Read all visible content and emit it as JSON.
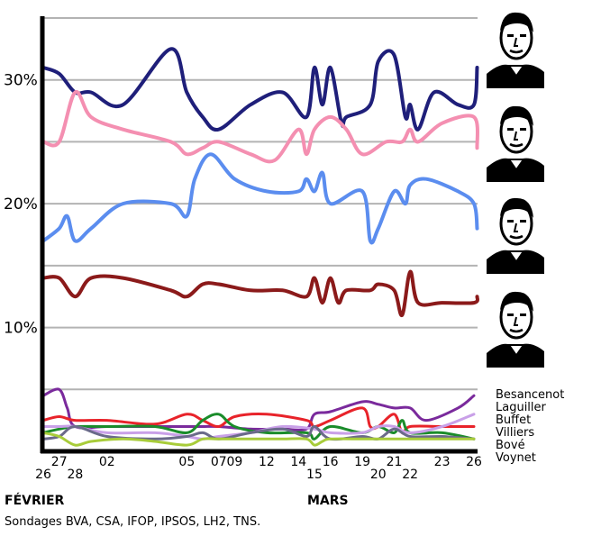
{
  "chart_data": {
    "type": "line",
    "x": [
      26,
      27,
      28,
      30,
      33,
      35,
      37,
      38,
      40,
      42,
      43,
      44,
      46,
      47,
      49,
      51,
      52,
      53,
      56
    ],
    "x_tick_labels": [
      "26",
      "27",
      "28",
      "02",
      "05",
      "07",
      "09",
      "12",
      "14",
      "15",
      "16",
      "19",
      "20",
      "21",
      "22",
      "23",
      "26"
    ],
    "x_tick_values": [
      26,
      27,
      28,
      30,
      35,
      37,
      38,
      40,
      42,
      43,
      44,
      46,
      47,
      48,
      49,
      51,
      53
    ],
    "month_labels": [
      {
        "label": "FÉVRIER",
        "x": 26
      },
      {
        "label": "MARS",
        "x": 44
      }
    ],
    "y_ticks": [
      10,
      20,
      30
    ],
    "y_tick_labels": [
      "10%",
      "20%",
      "30%"
    ],
    "ylim": [
      0,
      35
    ],
    "gridlines": [
      5,
      10,
      15,
      20,
      25,
      30,
      35
    ],
    "series": [
      {
        "key": "sarkozy",
        "color": "#1f1f7a",
        "points": [
          [
            26,
            31
          ],
          [
            27,
            30.5
          ],
          [
            28,
            29
          ],
          [
            29,
            29
          ],
          [
            31,
            28
          ],
          [
            34,
            32.5
          ],
          [
            35,
            29
          ],
          [
            36,
            27
          ],
          [
            37,
            26
          ],
          [
            39,
            28
          ],
          [
            41,
            29
          ],
          [
            42.5,
            27
          ],
          [
            43,
            31
          ],
          [
            43.5,
            28
          ],
          [
            44,
            31
          ],
          [
            44.7,
            26.5
          ],
          [
            45,
            27
          ],
          [
            46.5,
            28
          ],
          [
            47,
            31.5
          ],
          [
            48,
            32
          ],
          [
            48.7,
            27
          ],
          [
            49,
            28
          ],
          [
            49.5,
            26
          ],
          [
            50.5,
            29
          ],
          [
            52,
            28
          ],
          [
            53,
            28
          ],
          [
            53.2,
            31
          ]
        ]
      },
      {
        "key": "royal",
        "color": "#f48fb1",
        "points": [
          [
            26,
            25
          ],
          [
            27,
            25
          ],
          [
            28,
            29
          ],
          [
            29,
            27
          ],
          [
            31,
            26
          ],
          [
            34,
            25
          ],
          [
            35,
            24
          ],
          [
            36,
            24.5
          ],
          [
            37,
            25
          ],
          [
            39,
            24
          ],
          [
            40.5,
            23.5
          ],
          [
            42,
            26
          ],
          [
            42.5,
            24
          ],
          [
            43,
            26
          ],
          [
            44,
            27
          ],
          [
            45,
            26
          ],
          [
            46,
            24
          ],
          [
            47.5,
            25
          ],
          [
            48.5,
            25
          ],
          [
            49,
            26
          ],
          [
            49.5,
            25
          ],
          [
            51,
            26.5
          ],
          [
            53,
            27
          ],
          [
            53.2,
            24.5
          ]
        ]
      },
      {
        "key": "bayrou",
        "color": "#5b8def",
        "points": [
          [
            26,
            17
          ],
          [
            27,
            18
          ],
          [
            27.5,
            19
          ],
          [
            28,
            17
          ],
          [
            29,
            18
          ],
          [
            31,
            20
          ],
          [
            34,
            20
          ],
          [
            35,
            19
          ],
          [
            35.5,
            22
          ],
          [
            36.5,
            24
          ],
          [
            38,
            22
          ],
          [
            40,
            21
          ],
          [
            42,
            21
          ],
          [
            42.5,
            22
          ],
          [
            43,
            21
          ],
          [
            43.5,
            22.5
          ],
          [
            44,
            20
          ],
          [
            46,
            21
          ],
          [
            46.5,
            17
          ],
          [
            47,
            18
          ],
          [
            48,
            21
          ],
          [
            48.7,
            20
          ],
          [
            49,
            21.5
          ],
          [
            50,
            22
          ],
          [
            52,
            21
          ],
          [
            53,
            20
          ],
          [
            53.2,
            18
          ]
        ]
      },
      {
        "key": "lepen",
        "color": "#8b1a1a",
        "points": [
          [
            26,
            14
          ],
          [
            27,
            14
          ],
          [
            28,
            12.5
          ],
          [
            29,
            14
          ],
          [
            31,
            14
          ],
          [
            34,
            13
          ],
          [
            35,
            12.5
          ],
          [
            36,
            13.5
          ],
          [
            37,
            13.5
          ],
          [
            39,
            13
          ],
          [
            41,
            13
          ],
          [
            42.5,
            12.5
          ],
          [
            43,
            14
          ],
          [
            43.5,
            12
          ],
          [
            44,
            14
          ],
          [
            44.5,
            12
          ],
          [
            45,
            13
          ],
          [
            46.5,
            13
          ],
          [
            47,
            13.5
          ],
          [
            48,
            13
          ],
          [
            48.5,
            11
          ],
          [
            49,
            14.5
          ],
          [
            49.5,
            12
          ],
          [
            51,
            12
          ],
          [
            53,
            12
          ],
          [
            53.2,
            12.5
          ]
        ]
      },
      {
        "key": "besancenot",
        "color": "#7a2a9c",
        "points": [
          [
            26,
            4.5
          ],
          [
            27,
            5
          ],
          [
            27.5,
            3.5
          ],
          [
            28,
            2
          ],
          [
            30,
            2
          ],
          [
            33,
            2
          ],
          [
            35,
            2
          ],
          [
            36,
            2
          ],
          [
            37,
            2
          ],
          [
            39,
            1.8
          ],
          [
            41,
            1.8
          ],
          [
            42.5,
            1.8
          ],
          [
            43,
            3
          ],
          [
            44,
            3.2
          ],
          [
            46,
            4
          ],
          [
            47,
            3.8
          ],
          [
            48,
            3.5
          ],
          [
            49,
            3.5
          ],
          [
            50,
            2.5
          ],
          [
            52,
            3.5
          ],
          [
            53,
            4.5
          ]
        ]
      },
      {
        "key": "laguiller",
        "color": "#e8232a",
        "points": [
          [
            26,
            2.5
          ],
          [
            27,
            2.8
          ],
          [
            28,
            2.5
          ],
          [
            30,
            2.5
          ],
          [
            33,
            2.2
          ],
          [
            35,
            3
          ],
          [
            36,
            2.5
          ],
          [
            37,
            2
          ],
          [
            38,
            2.8
          ],
          [
            40,
            3
          ],
          [
            42.5,
            2.5
          ],
          [
            43,
            2
          ],
          [
            44,
            2.5
          ],
          [
            46,
            3.5
          ],
          [
            46.5,
            2
          ],
          [
            47,
            2
          ],
          [
            48,
            3
          ],
          [
            48.5,
            1.5
          ],
          [
            49,
            2
          ],
          [
            51,
            2
          ],
          [
            53,
            2
          ]
        ]
      },
      {
        "key": "buffet",
        "color": "#1a8c2a",
        "points": [
          [
            26,
            1.5
          ],
          [
            27,
            1.8
          ],
          [
            28,
            2
          ],
          [
            30,
            2
          ],
          [
            33,
            2
          ],
          [
            35,
            1.5
          ],
          [
            36,
            2.5
          ],
          [
            37,
            3
          ],
          [
            38,
            2
          ],
          [
            40,
            1.5
          ],
          [
            42.5,
            1.5
          ],
          [
            43,
            1
          ],
          [
            44,
            2
          ],
          [
            46,
            1.5
          ],
          [
            47,
            2
          ],
          [
            48,
            1.5
          ],
          [
            48.5,
            2.5
          ],
          [
            49,
            1.5
          ],
          [
            51,
            1.5
          ],
          [
            53,
            1
          ]
        ]
      },
      {
        "key": "villiers",
        "color": "#c9a0e8",
        "points": [
          [
            26,
            2
          ],
          [
            27,
            2
          ],
          [
            28,
            2
          ],
          [
            30,
            1.5
          ],
          [
            33,
            1.5
          ],
          [
            35,
            1.2
          ],
          [
            36,
            1
          ],
          [
            37,
            1.2
          ],
          [
            39,
            1.5
          ],
          [
            41,
            2
          ],
          [
            43,
            1.8
          ],
          [
            44,
            1.5
          ],
          [
            46,
            1.5
          ],
          [
            47,
            2
          ],
          [
            48,
            2
          ],
          [
            49,
            1.5
          ],
          [
            51,
            2
          ],
          [
            53,
            3
          ]
        ]
      },
      {
        "key": "bove",
        "color": "#6a6a8a",
        "points": [
          [
            26,
            1
          ],
          [
            27,
            1.2
          ],
          [
            28,
            2
          ],
          [
            30,
            1.2
          ],
          [
            33,
            1
          ],
          [
            35,
            1.2
          ],
          [
            36,
            1.5
          ],
          [
            37,
            1
          ],
          [
            39,
            1.5
          ],
          [
            41,
            1.8
          ],
          [
            42.5,
            1.2
          ],
          [
            43,
            2
          ],
          [
            44,
            1
          ],
          [
            46,
            1.2
          ],
          [
            47,
            1
          ],
          [
            48,
            1.8
          ],
          [
            49,
            1.2
          ],
          [
            51,
            1.2
          ],
          [
            53,
            1
          ]
        ]
      },
      {
        "key": "voynet",
        "color": "#a8cc3a",
        "points": [
          [
            26,
            1.5
          ],
          [
            27,
            1.2
          ],
          [
            28,
            0.5
          ],
          [
            29,
            0.8
          ],
          [
            31,
            1
          ],
          [
            33,
            0.8
          ],
          [
            35,
            0.5
          ],
          [
            36,
            1
          ],
          [
            37,
            1
          ],
          [
            39,
            1
          ],
          [
            41,
            1
          ],
          [
            42.5,
            1
          ],
          [
            43,
            0.5
          ],
          [
            43.5,
            0.8
          ],
          [
            44,
            1
          ],
          [
            46,
            1
          ],
          [
            47,
            1
          ],
          [
            49,
            1
          ],
          [
            51,
            1
          ],
          [
            53,
            1
          ]
        ]
      }
    ],
    "legend_labels": [
      "Besancenot",
      "Laguiller",
      "Buffet",
      "Villiers",
      "Bové",
      "Voynet"
    ],
    "legend_placement": "right"
  },
  "source_text": "Sondages BVA, CSA, IFOP, IPSOS, LH2, TNS.",
  "portraits": [
    {
      "name": "portrait-1-icon"
    },
    {
      "name": "portrait-2-icon"
    },
    {
      "name": "portrait-3-icon"
    },
    {
      "name": "portrait-4-icon"
    }
  ]
}
